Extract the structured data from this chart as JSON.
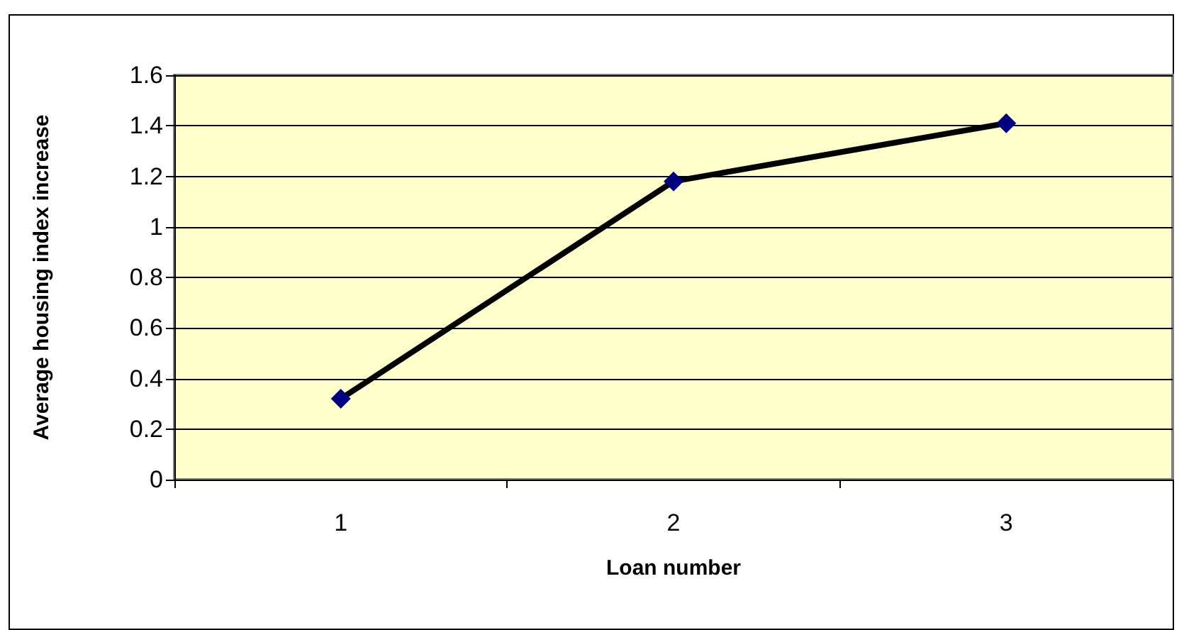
{
  "chart_data": {
    "type": "line",
    "xlabel": "Loan number",
    "ylabel": "Average housing index increase",
    "categories": [
      "1",
      "2",
      "3"
    ],
    "series": [
      {
        "color": "#000080",
        "values": [
          0.32,
          1.18,
          1.41
        ]
      }
    ],
    "ylim": [
      0,
      1.6
    ],
    "yticks": [
      0,
      0.2,
      0.4,
      0.6,
      0.8,
      1,
      1.2,
      1.4,
      1.6
    ],
    "grid": "y",
    "marker": "diamond",
    "line_style": "solid"
  }
}
